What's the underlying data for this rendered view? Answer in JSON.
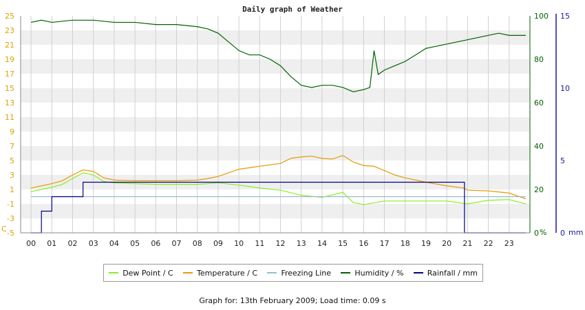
{
  "chart_data": {
    "type": "line",
    "title": "Daily graph of Weather",
    "x_ticks": [
      "00",
      "01",
      "02",
      "03",
      "04",
      "05",
      "06",
      "07",
      "08",
      "09",
      "10",
      "11",
      "12",
      "13",
      "14",
      "15",
      "16",
      "17",
      "18",
      "19",
      "20",
      "21",
      "22",
      "23"
    ],
    "axes": {
      "left": {
        "unit_label": "C",
        "ylim": [
          -5,
          25
        ],
        "ticks": [
          -5,
          -3,
          -1,
          1,
          3,
          5,
          7,
          9,
          11,
          13,
          15,
          17,
          19,
          21,
          23,
          25
        ],
        "color": "#e0a000"
      },
      "humidity": {
        "unit_label": "%",
        "ylim": [
          0,
          100
        ],
        "ticks": [
          0,
          20,
          40,
          60,
          80,
          100
        ],
        "color": "#006000"
      },
      "rainfall": {
        "unit_label": "mm",
        "ylim": [
          0,
          15
        ],
        "ticks": [
          0,
          5,
          10,
          15
        ],
        "color": "#1a1a99"
      }
    },
    "grid": true,
    "legend_placement": "bottom",
    "series": [
      {
        "name": "Dew Point / C",
        "axis": "left",
        "color": "#88ee22",
        "x": [
          0,
          0.5,
          1,
          1.5,
          2,
          2.5,
          3,
          3.5,
          4,
          5,
          6,
          7,
          8,
          9,
          10,
          11,
          12,
          13,
          14,
          15,
          15.5,
          16,
          17,
          18,
          19,
          20,
          21,
          22,
          23,
          23.8
        ],
        "y": [
          0.7,
          1.0,
          1.3,
          1.7,
          2.5,
          3.3,
          3.0,
          2.1,
          1.9,
          1.8,
          1.7,
          1.7,
          1.7,
          1.9,
          1.6,
          1.2,
          0.9,
          0.2,
          -0.1,
          0.6,
          -0.8,
          -1.1,
          -0.6,
          -0.6,
          -0.6,
          -0.6,
          -1.0,
          -0.5,
          -0.4,
          -1.0
        ]
      },
      {
        "name": "Temperature / C",
        "axis": "left",
        "color": "#e89a00",
        "x": [
          0,
          0.5,
          1,
          1.5,
          2,
          2.5,
          3,
          3.5,
          4,
          5,
          6,
          7,
          8,
          8.5,
          9,
          10,
          11,
          12,
          12.5,
          13,
          13.5,
          14,
          14.5,
          15,
          15.5,
          16,
          16.5,
          17,
          17.5,
          18,
          19,
          20,
          20.8,
          21,
          22,
          23,
          23.8
        ],
        "y": [
          1.2,
          1.5,
          1.8,
          2.2,
          3.0,
          3.7,
          3.5,
          2.6,
          2.3,
          2.2,
          2.2,
          2.2,
          2.3,
          2.5,
          2.8,
          3.8,
          4.2,
          4.6,
          5.3,
          5.5,
          5.6,
          5.3,
          5.2,
          5.7,
          4.8,
          4.3,
          4.2,
          3.6,
          3.0,
          2.6,
          2.0,
          1.5,
          1.2,
          0.9,
          0.8,
          0.5,
          -0.3
        ]
      },
      {
        "name": "Freezing Line",
        "axis": "left",
        "color": "#99bbcc",
        "x": [
          0,
          23.8
        ],
        "y": [
          0,
          0
        ]
      },
      {
        "name": "Humidity / %",
        "axis": "humidity",
        "color": "#006000",
        "x": [
          0,
          0.5,
          1,
          2,
          3,
          4,
          5,
          6,
          7,
          8,
          8.5,
          9,
          9.5,
          10,
          10.5,
          11,
          11.5,
          12,
          12.5,
          13,
          13.5,
          14,
          14.5,
          15,
          15.5,
          16,
          16.3,
          16.5,
          16.7,
          17,
          17.5,
          18,
          18.5,
          19,
          19.5,
          20,
          21,
          22,
          22.5,
          23,
          23.8
        ],
        "y": [
          97,
          98,
          97,
          98,
          98,
          97,
          97,
          96,
          96,
          95,
          94,
          92,
          88,
          84,
          82,
          82,
          80,
          77,
          72,
          68,
          67,
          68,
          68,
          67,
          65,
          66,
          67,
          84,
          73,
          75,
          77,
          79,
          82,
          85,
          86,
          87,
          89,
          91,
          92,
          91,
          91
        ]
      },
      {
        "name": "Rainfall / mm",
        "axis": "rainfall",
        "color": "#00008b",
        "step": true,
        "x": [
          0,
          0.5,
          1.0,
          1.5,
          2.0,
          2.5,
          3.0,
          4.0,
          5.0,
          6.0,
          7.0,
          8.0,
          9.0,
          10.0,
          11.0,
          12.0,
          13.0,
          14.0,
          15.0,
          16.0,
          17.0,
          18.0,
          19.0,
          20.0,
          20.8,
          20.85,
          21.0,
          22.0,
          23.0,
          23.8
        ],
        "y": [
          0,
          1.5,
          2.5,
          2.5,
          2.5,
          3.5,
          3.5,
          3.5,
          3.5,
          3.5,
          3.5,
          3.5,
          3.5,
          3.5,
          3.5,
          3.5,
          3.5,
          3.5,
          3.5,
          3.5,
          3.5,
          3.5,
          3.5,
          3.5,
          3.5,
          0,
          0,
          0,
          0,
          0
        ]
      }
    ]
  },
  "legend": {
    "dew_point": "Dew Point / C",
    "temperature": "Temperature / C",
    "freezing": "Freezing Line",
    "humidity": "Humidity / %",
    "rainfall": "Rainfall / mm"
  },
  "footer": "Graph for: 13th February 2009; Load time: 0.09 s"
}
